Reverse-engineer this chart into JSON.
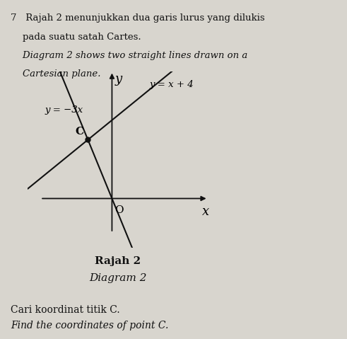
{
  "bg_color": "#d8d5ce",
  "line_color": "#111111",
  "point_color": "#111111",
  "axis_color": "#111111",
  "text_color": "#111111",
  "header_text1": "7   Rajah 2 menunjukkan dua garis lurus yang dilukis",
  "header_text2": "    pada suatu satah Cartes.",
  "header_text3": "    Diagram 2 shows two straight lines drawn on a",
  "header_text4": "    Cartesian plane.",
  "line1_label": "y = x + 4",
  "line2_label": "y = −3x",
  "line1_slope": 1,
  "line1_intercept": 4,
  "line2_slope": -3,
  "line2_intercept": 0,
  "intersection": [
    -1,
    3
  ],
  "intersection_label": "C",
  "xlim": [
    -3.5,
    4.0
  ],
  "ylim": [
    -2.5,
    6.5
  ],
  "origin_label": "O",
  "xlabel": "x",
  "ylabel": "y",
  "caption_bold": "Rajah 2",
  "caption_italic": "Diagram 2",
  "bottom_text1": "Cari koordinat titik C.",
  "bottom_text2": "Find the coordinates of point C.",
  "fig_width": 4.91,
  "fig_height": 4.79,
  "dpi": 100
}
